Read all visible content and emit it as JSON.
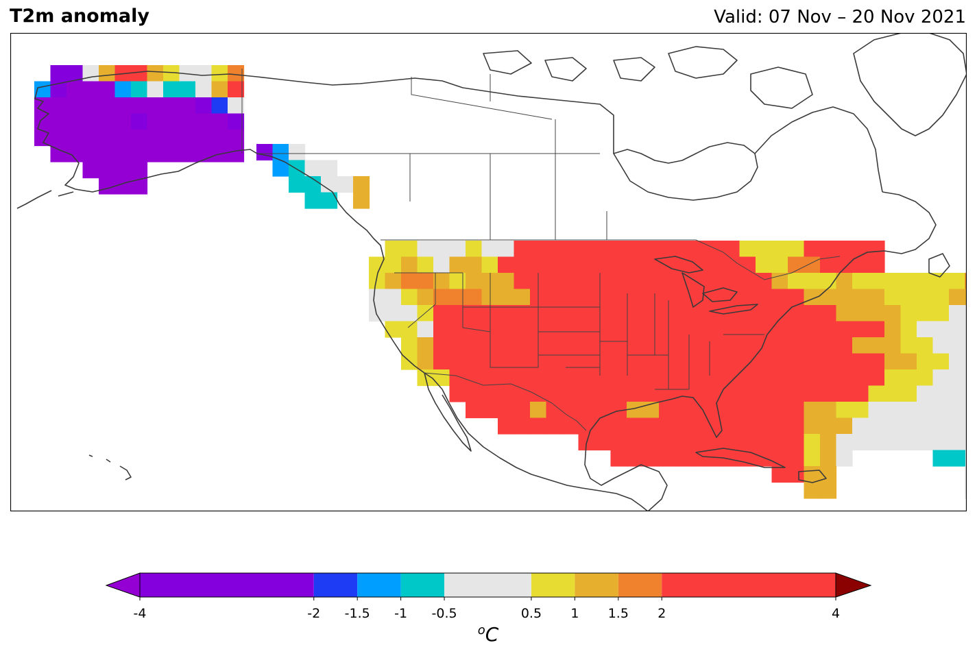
{
  "title": "T2m anomaly",
  "valid": "Valid: 07 Nov – 20 Nov 2021",
  "colorbar": {
    "unit": "ᴼC",
    "ticks": [
      {
        "label": "-4",
        "v": -4
      },
      {
        "label": "-2",
        "v": -2
      },
      {
        "label": "-1.5",
        "v": -1.5
      },
      {
        "label": "-1",
        "v": -1
      },
      {
        "label": "-0.5",
        "v": -0.5
      },
      {
        "label": "0.5",
        "v": 0.5
      },
      {
        "label": "1",
        "v": 1
      },
      {
        "label": "1.5",
        "v": 1.5
      },
      {
        "label": "2",
        "v": 2
      },
      {
        "label": "4",
        "v": 4
      }
    ],
    "bins": [
      {
        "from": -4,
        "to": -2,
        "color": "#8400dd"
      },
      {
        "from": -2,
        "to": -1.5,
        "color": "#1f3cf5"
      },
      {
        "from": -1.5,
        "to": -1,
        "color": "#009eff"
      },
      {
        "from": -1,
        "to": -0.5,
        "color": "#00c8c8"
      },
      {
        "from": -0.5,
        "to": 0.5,
        "color": "#e6e6e6"
      },
      {
        "from": 0.5,
        "to": 1,
        "color": "#e6dc32"
      },
      {
        "from": 1,
        "to": 1.5,
        "color": "#e6af2d"
      },
      {
        "from": 1.5,
        "to": 2,
        "color": "#f0822d"
      },
      {
        "from": 2,
        "to": 4,
        "color": "#fa3c3c"
      }
    ],
    "under_color": "#9400d3",
    "over_color": "#8b0000"
  },
  "palette": {
    "P": "#9400d3",
    "V": "#8400dd",
    "B": "#1f3cf5",
    "L": "#009eff",
    "C": "#00c8c8",
    "W": "#e6e6e6",
    "Y": "#e6dc32",
    "G": "#e6af2d",
    "O": "#f0822d",
    "R": "#fa3c3c"
  },
  "grids": [
    {
      "region": "Alaska",
      "rows": [
        "-VVWGRRGYWWYO",
        "LVPPPLCWCCWGR",
        "PPPPPPPPPPVBW",
        "PPPPPPVPPPPPV",
        "PPPPPPPPPPPPP",
        "-PPPPPPPPPPPP",
        "---PPPP------",
        "----PPP------"
      ]
    },
    {
      "region": "Alaska Panhandle",
      "rows": [
        "VLW-",
        "-LCWW",
        "--CCWWG",
        "---CC-G"
      ]
    },
    {
      "region": "CONUS",
      "rows": [
        "-YYWWWYWWRRRRRRRRRRRRRRYYYYRRRRR",
        "YYGYWGGYRRRRRRRRRRRRRRRRYYOORRRR",
        "YGOOGYGGGRRRRRRRRRRRRRRRRGYYYGYYYYYYYOOOOOOOOOORR",
        "WWYGOOOGGGRRRRRRRRRRRRRRRRRGGGGGYYYYGGGGGYYYGYYGOOOO",
        "WWWYRRRRRRRRRRRRRRRRRRRRRRRRRGGGGYYYWWWWWYYYOOOOOOO",
        "-YYWRRRRRRRRRRRRRRRRRRRRRRRRRRRRGYWWWWWWYYYYYYGGYY",
        "--YGRRRRRRRRRRRRRRRRRRRRRRRRRRGGGYYWWWWWWGGGYYYYY",
        "--YGRRRRRRRRRRRRRRRRRRRRRRRRRRRRGGYYWWWWWBWYYYY",
        "---YYRRRRRRRRRRRRRRRRRRRRRRRRRRRYYYWWWWWWYYYY",
        "-----RRRRRRRRRRRRRRRRRRRRRRRRRRYYYWWWWWWYYYY",
        "------RRRRGRRRRRGGRRRRRRRRRGGYYWWWWWWWWWW",
        "--------RRRRRRRRRRRRRRRRRRRGGGWWWWWWWWWWW",
        "-------------RRRRRRRRRRRRRRYGWWWWWWWWWCWW",
        "---------------RRRRRRRRRRRRYGW-----CC-WW",
        "-------------------------RRGG--------WW",
        "---------------------------GG--------WW",
        "---------------------------------------WW",
        "---------------------------------------WW"
      ]
    }
  ],
  "map": {
    "land_fill": "#ffffff",
    "line_color": "#3a3a3a",
    "border_color": "#444444"
  }
}
